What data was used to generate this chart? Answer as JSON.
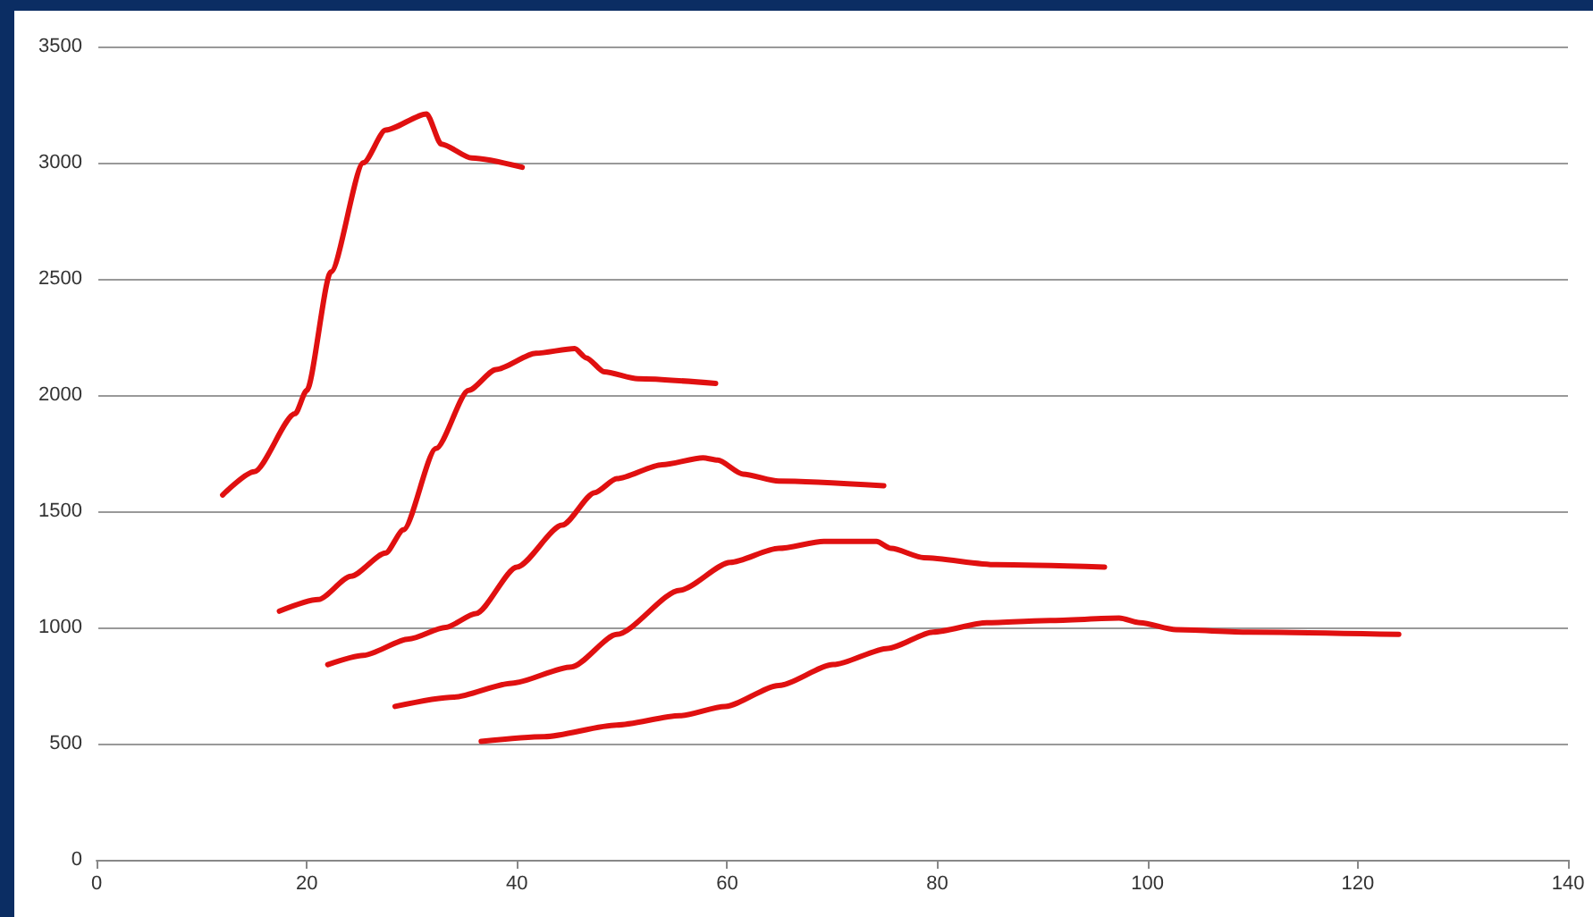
{
  "chart_data": {
    "type": "line",
    "marker": "none",
    "line_style": "solid",
    "grid": "y",
    "xlim": [
      0,
      140
    ],
    "xticks": [
      0,
      20,
      40,
      60,
      80,
      100,
      120,
      140
    ],
    "ylim": [
      0,
      3500
    ],
    "yticks": [
      0,
      500,
      1000,
      1500,
      2000,
      2500,
      3000,
      3500
    ],
    "series": [
      {
        "color": "#e01010",
        "x": [
          12,
          15,
          18.9,
          20,
          22.3,
          25.4,
          27.5,
          31.4,
          32.8,
          35.7,
          40.5
        ],
        "values": [
          1570,
          1670,
          1920,
          2020,
          2530,
          3000,
          3140,
          3210,
          3080,
          3020,
          2980
        ]
      },
      {
        "color": "#e01010",
        "x": [
          17.4,
          21.1,
          24.2,
          27.5,
          29.2,
          32.3,
          35.4,
          38,
          41.8,
          45.5,
          46.6,
          48.3,
          51.5,
          58.9
        ],
        "values": [
          1070,
          1120,
          1220,
          1320,
          1420,
          1770,
          2020,
          2110,
          2180,
          2200,
          2160,
          2100,
          2070,
          2050
        ]
      },
      {
        "color": "#e01010",
        "x": [
          22,
          25.4,
          29.7,
          33.2,
          36.1,
          40,
          44.3,
          47.4,
          49.5,
          53.8,
          57.7,
          59.1,
          61.5,
          64.9,
          74.9
        ],
        "values": [
          840,
          880,
          950,
          1000,
          1060,
          1260,
          1440,
          1580,
          1640,
          1700,
          1730,
          1720,
          1660,
          1630,
          1610
        ]
      },
      {
        "color": "#e01010",
        "x": [
          28.4,
          34,
          39.5,
          45.2,
          49.5,
          55.5,
          60.3,
          64.9,
          69.2,
          74.2,
          75.6,
          78.7,
          85.6,
          95.9
        ],
        "values": [
          660,
          700,
          760,
          830,
          970,
          1160,
          1280,
          1340,
          1370,
          1370,
          1340,
          1300,
          1270,
          1260
        ]
      },
      {
        "color": "#e01010",
        "x": [
          36.6,
          42.6,
          49.5,
          55.5,
          59.8,
          64.9,
          70.1,
          75.3,
          79.6,
          84.7,
          90.7,
          97.3,
          99.3,
          102.7,
          109.6,
          123.9
        ],
        "values": [
          510,
          530,
          580,
          620,
          660,
          750,
          840,
          910,
          980,
          1020,
          1030,
          1040,
          1020,
          990,
          980,
          970
        ]
      }
    ]
  }
}
